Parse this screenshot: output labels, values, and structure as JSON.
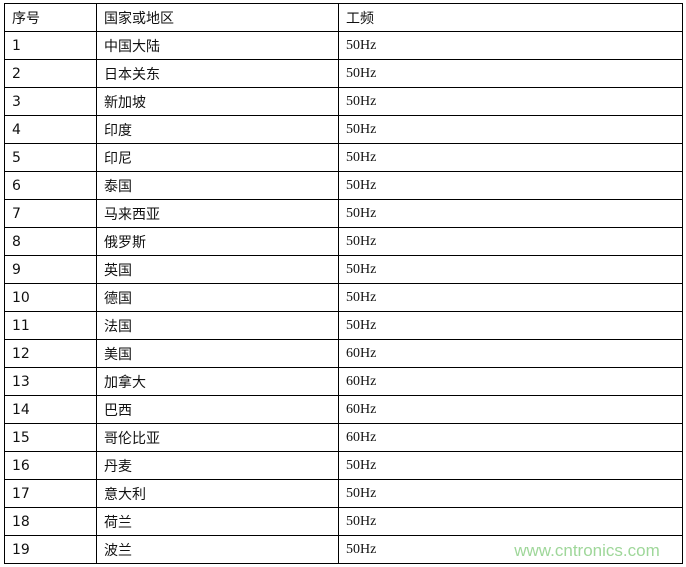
{
  "table": {
    "headers": [
      "序号",
      "国家或地区",
      "工频"
    ],
    "rows": [
      [
        "1",
        "中国大陆",
        "50Hz"
      ],
      [
        "2",
        "日本关东",
        "50Hz"
      ],
      [
        "3",
        "新加坡",
        "50Hz"
      ],
      [
        "4",
        "印度",
        "50Hz"
      ],
      [
        "5",
        "印尼",
        "50Hz"
      ],
      [
        "6",
        "泰国",
        "50Hz"
      ],
      [
        "7",
        "马来西亚",
        "50Hz"
      ],
      [
        "8",
        "俄罗斯",
        "50Hz"
      ],
      [
        "9",
        "英国",
        "50Hz"
      ],
      [
        "10",
        "德国",
        "50Hz"
      ],
      [
        "11",
        "法国",
        "50Hz"
      ],
      [
        "12",
        "美国",
        "60Hz"
      ],
      [
        "13",
        "加拿大",
        "60Hz"
      ],
      [
        "14",
        "巴西",
        "60Hz"
      ],
      [
        "15",
        "哥伦比亚",
        "60Hz"
      ],
      [
        "16",
        "丹麦",
        "50Hz"
      ],
      [
        "17",
        "意大利",
        "50Hz"
      ],
      [
        "18",
        "荷兰",
        "50Hz"
      ],
      [
        "19",
        "波兰",
        "50Hz"
      ]
    ]
  },
  "watermark": "www.cntronics.com",
  "colors": {
    "watermark": "#9fd79a",
    "border": "#000000"
  }
}
